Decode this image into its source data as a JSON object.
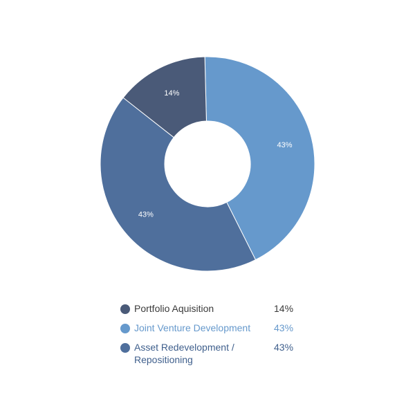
{
  "chart_data": {
    "type": "pie",
    "variant": "donut",
    "categories": [
      "Portfolio Aquisition",
      "Joint Venture Development",
      "Asset Redevelopment / Repositioning"
    ],
    "values": [
      14,
      43,
      43
    ],
    "labels": [
      "14%",
      "43%",
      "43%"
    ],
    "colors": [
      "#4a5a78",
      "#6699cc",
      "#4f6f9c"
    ],
    "legend_text_colors": [
      "#3a3a3a",
      "#6699cc",
      "#3f5f8c"
    ],
    "legend_position": "bottom"
  },
  "legend": {
    "items": [
      {
        "label": "Portfolio Aquisition",
        "value": "14%"
      },
      {
        "label": "Joint Venture Development",
        "value": "43%"
      },
      {
        "label": "Asset Redevelopment / Repositioning",
        "value": "43%"
      }
    ]
  }
}
